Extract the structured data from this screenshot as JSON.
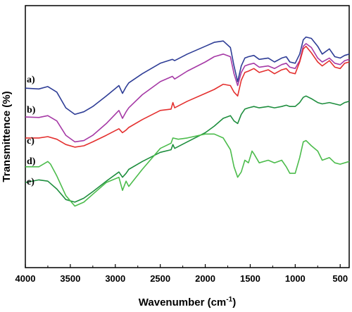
{
  "chart_data": {
    "type": "line",
    "xlabel": "Wavenumber (cm",
    "xlabel_sup": "-1",
    "xlabel_close": ")",
    "ylabel": "Transmittence (%)",
    "xlim": [
      4000,
      400
    ],
    "x_reversed": true,
    "y_ticks_shown": false,
    "xticks": [
      4000,
      3500,
      3000,
      2500,
      2000,
      1500,
      1000,
      500
    ],
    "ylim": [
      0,
      100
    ],
    "legend": "none",
    "series": [
      {
        "name": "a)",
        "color": "#2e3d96",
        "x": [
          4000,
          3850,
          3750,
          3650,
          3550,
          3450,
          3350,
          3250,
          3100,
          2960,
          2920,
          2880,
          2850,
          2700,
          2500,
          2365,
          2340,
          2200,
          2000,
          1900,
          1800,
          1720,
          1680,
          1640,
          1600,
          1560,
          1520,
          1460,
          1400,
          1300,
          1230,
          1150,
          1100,
          1060,
          1000,
          950,
          910,
          880,
          820,
          750,
          700,
          620,
          560,
          500,
          450,
          400
        ],
        "y": [
          68.5,
          68.2,
          69.1,
          67.0,
          61.0,
          58.5,
          59.5,
          61.5,
          65.5,
          69.5,
          66.5,
          69.0,
          70.5,
          74.0,
          78.0,
          79.5,
          79.0,
          81.5,
          84.5,
          86.0,
          86.5,
          84.0,
          77.0,
          71.0,
          77.0,
          80.0,
          80.5,
          81.0,
          79.5,
          80.0,
          78.5,
          80.0,
          80.5,
          78.5,
          78.0,
          81.5,
          87.0,
          88.0,
          87.5,
          84.5,
          81.5,
          83.5,
          80.5,
          80.0,
          81.0,
          81.5
        ]
      },
      {
        "name": "b)",
        "color": "#a63aa6",
        "x": [
          4000,
          3850,
          3750,
          3650,
          3550,
          3450,
          3350,
          3250,
          3100,
          2960,
          2920,
          2880,
          2850,
          2700,
          2500,
          2365,
          2340,
          2200,
          2000,
          1900,
          1800,
          1720,
          1680,
          1640,
          1600,
          1560,
          1520,
          1460,
          1400,
          1300,
          1230,
          1150,
          1100,
          1060,
          1000,
          950,
          910,
          880,
          820,
          750,
          700,
          620,
          560,
          500,
          450,
          400
        ],
        "y": [
          57.5,
          57.3,
          58.0,
          56.0,
          50.5,
          48.0,
          48.5,
          50.5,
          55.0,
          60.0,
          57.0,
          59.5,
          61.0,
          66.0,
          71.0,
          73.0,
          72.0,
          75.0,
          78.5,
          80.5,
          81.5,
          80.5,
          74.0,
          69.5,
          74.5,
          77.0,
          77.5,
          78.0,
          76.5,
          77.0,
          76.0,
          77.5,
          78.0,
          76.5,
          76.0,
          79.0,
          84.5,
          85.5,
          84.0,
          80.0,
          78.5,
          80.0,
          78.0,
          77.5,
          79.0,
          79.5
        ]
      },
      {
        "name": "c)",
        "color": "#e4302f",
        "x": [
          4000,
          3850,
          3750,
          3650,
          3550,
          3450,
          3350,
          3250,
          3100,
          2960,
          2920,
          2880,
          2850,
          2700,
          2500,
          2380,
          2360,
          2340,
          2200,
          2000,
          1900,
          1800,
          1720,
          1680,
          1640,
          1600,
          1560,
          1520,
          1460,
          1400,
          1300,
          1230,
          1150,
          1100,
          1060,
          1000,
          950,
          910,
          880,
          820,
          750,
          700,
          620,
          560,
          500,
          450,
          400
        ],
        "y": [
          49.5,
          49.5,
          50.0,
          49.0,
          47.0,
          46.0,
          46.5,
          48.0,
          50.5,
          53.0,
          51.5,
          52.5,
          53.5,
          56.5,
          60.0,
          60.5,
          63.0,
          61.0,
          63.5,
          66.5,
          68.0,
          70.0,
          69.5,
          67.0,
          65.5,
          71.5,
          74.5,
          75.0,
          76.0,
          74.5,
          75.5,
          74.0,
          75.5,
          76.0,
          74.5,
          74.0,
          78.5,
          83.5,
          84.5,
          82.0,
          78.5,
          77.0,
          79.0,
          76.5,
          76.0,
          78.0,
          78.5
        ]
      },
      {
        "name": "d)",
        "color": "#1e8e3e",
        "x": [
          4000,
          3850,
          3750,
          3650,
          3550,
          3450,
          3350,
          3250,
          3100,
          2960,
          2920,
          2880,
          2850,
          2700,
          2500,
          2380,
          2360,
          2340,
          2200,
          2000,
          1900,
          1800,
          1720,
          1680,
          1640,
          1600,
          1560,
          1520,
          1460,
          1400,
          1300,
          1230,
          1150,
          1100,
          1060,
          1000,
          950,
          910,
          880,
          820,
          750,
          700,
          620,
          560,
          500,
          450,
          400
        ],
        "y": [
          32.5,
          33.5,
          33.0,
          30.0,
          26.0,
          25.0,
          26.5,
          29.0,
          33.0,
          36.5,
          34.5,
          36.0,
          37.5,
          40.5,
          44.0,
          45.0,
          47.0,
          45.5,
          48.0,
          51.5,
          54.0,
          57.0,
          58.0,
          56.0,
          55.0,
          58.5,
          60.5,
          61.0,
          61.5,
          61.0,
          61.5,
          61.0,
          61.5,
          62.0,
          61.5,
          61.5,
          63.0,
          65.0,
          65.5,
          64.5,
          63.0,
          62.5,
          63.0,
          62.5,
          62.0,
          63.0,
          63.5
        ]
      },
      {
        "name": "e)",
        "color": "#4cbc4c",
        "x": [
          4000,
          3850,
          3750,
          3720,
          3650,
          3550,
          3450,
          3350,
          3250,
          3100,
          2960,
          2920,
          2880,
          2850,
          2700,
          2500,
          2380,
          2360,
          2300,
          2200,
          2000,
          1900,
          1800,
          1720,
          1680,
          1640,
          1600,
          1560,
          1520,
          1480,
          1460,
          1400,
          1300,
          1230,
          1150,
          1100,
          1060,
          1000,
          950,
          910,
          880,
          820,
          750,
          700,
          620,
          560,
          500,
          450,
          400
        ],
        "y": [
          38.5,
          38.5,
          40.5,
          39.5,
          35.0,
          27.5,
          23.5,
          25.0,
          28.0,
          32.5,
          34.5,
          29.5,
          33.0,
          31.0,
          37.5,
          45.5,
          47.5,
          49.5,
          49.0,
          49.5,
          51.0,
          51.0,
          49.5,
          45.0,
          38.5,
          34.5,
          36.5,
          41.0,
          40.0,
          44.5,
          43.5,
          40.0,
          41.0,
          40.0,
          41.0,
          38.5,
          36.0,
          36.0,
          42.0,
          48.0,
          48.5,
          46.5,
          44.5,
          41.0,
          42.0,
          40.0,
          39.5,
          40.0,
          40.5
        ]
      }
    ]
  }
}
